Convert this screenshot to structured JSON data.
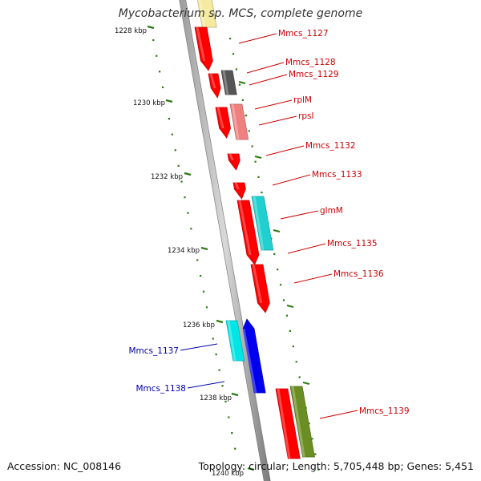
{
  "title": "Mycobacterium sp. MCS, complete genome",
  "footer": {
    "accession": "Accession: NC_008146",
    "topology": "Topology: circular; Length: 5,705,448 bp; Genes: 5,451"
  },
  "ticks": [
    "1228 kbp",
    "1230 kbp",
    "1232 kbp",
    "1234 kbp",
    "1236 kbp",
    "1238 kbp",
    "1240 kbp"
  ],
  "colors": {
    "backbone": "#8c8c8c",
    "tick": "#2a7a12",
    "forward_label": "#cc0000",
    "reverse_label": "#0000aa"
  },
  "genes": [
    {
      "label": "",
      "color": "#f5eaa0",
      "strand": "forward"
    },
    {
      "label": "Mmcs_1127",
      "color": "#ff0000",
      "strand": "forward"
    },
    {
      "label": "Mmcs_1128",
      "color": "#ff0000",
      "strand": "forward"
    },
    {
      "label": "Mmcs_1129",
      "color": "#555555",
      "strand": "forward"
    },
    {
      "label": "rplM",
      "color": "#ff0000",
      "strand": "forward"
    },
    {
      "label": "rpsI",
      "color": "#f08080",
      "strand": "forward"
    },
    {
      "label": "Mmcs_1132",
      "color": "#ff0000",
      "strand": "forward"
    },
    {
      "label": "Mmcs_1133",
      "color": "#ff0000",
      "strand": "forward"
    },
    {
      "label": "glmM",
      "color": "#20d0d0",
      "strand": "forward"
    },
    {
      "label": "Mmcs_1135",
      "color": "#ff0000",
      "strand": "forward"
    },
    {
      "label": "Mmcs_1136",
      "color": "#ff0000",
      "strand": "forward"
    },
    {
      "label": "Mmcs_1137",
      "color": "#00e5e5",
      "strand": "reverse"
    },
    {
      "label": "Mmcs_1138",
      "color": "#0000ee",
      "strand": "reverse"
    },
    {
      "label": "Mmcs_1139",
      "color": "#ff0000",
      "strand": "forward"
    },
    {
      "label": "",
      "color": "#6b8e23",
      "strand": "forward"
    }
  ]
}
